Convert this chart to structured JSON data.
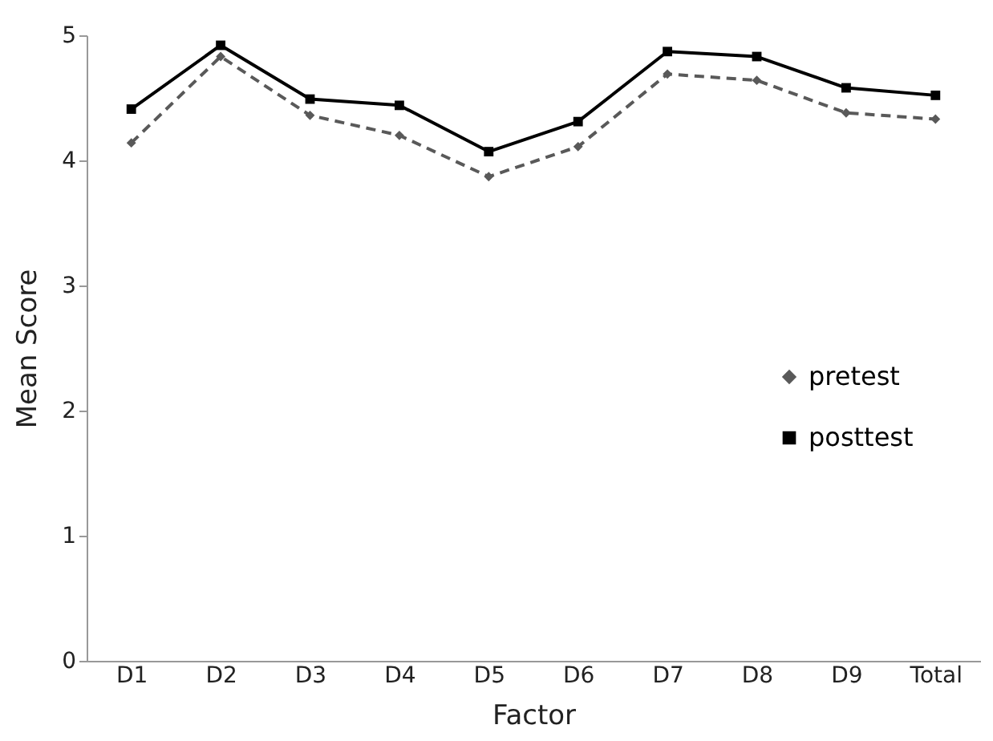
{
  "chart_data": {
    "type": "line",
    "xlabel": "Factor",
    "ylabel": "Mean Score",
    "categories": [
      "D1",
      "D2",
      "D3",
      "D4",
      "D5",
      "D6",
      "D7",
      "D8",
      "D9",
      "Total"
    ],
    "series": [
      {
        "name": "pretest",
        "color": "#595959",
        "values": [
          4.14,
          4.83,
          4.36,
          4.2,
          3.87,
          4.11,
          4.69,
          4.64,
          4.38,
          4.33
        ],
        "marker": "diamond",
        "line_style": "dashed"
      },
      {
        "name": "posttest",
        "color": "#000000",
        "values": [
          4.41,
          4.92,
          4.49,
          4.44,
          4.07,
          4.31,
          4.87,
          4.83,
          4.58,
          4.52
        ],
        "marker": "square",
        "line_style": "solid"
      }
    ],
    "ylim": [
      0,
      5
    ],
    "yticks": [
      0,
      1,
      2,
      3,
      4,
      5
    ],
    "grid": false,
    "legend": "right"
  }
}
